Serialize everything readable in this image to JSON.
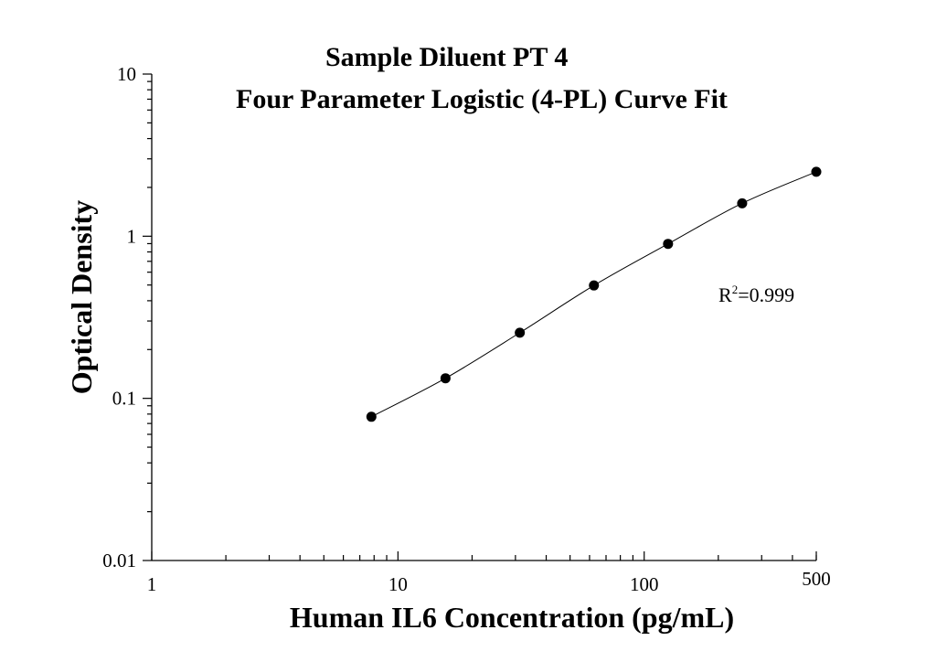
{
  "chart_data": {
    "type": "scatter",
    "title": "Sample Diluent PT 4",
    "subtitle": "Four Parameter Logistic (4-PL) Curve Fit",
    "xlabel": "Human IL6 Concentration (pg/mL)",
    "ylabel": "Optical Density",
    "x_scale": "log",
    "y_scale": "log",
    "xlim": [
      1,
      500
    ],
    "ylim": [
      0.01,
      10
    ],
    "x_ticks": [
      1,
      10,
      100,
      500
    ],
    "x_tick_labels": [
      "1",
      "10",
      "100",
      "500"
    ],
    "y_ticks": [
      0.01,
      0.1,
      1,
      10
    ],
    "y_tick_labels": [
      "0.01",
      "0.1",
      "1",
      "10"
    ],
    "grid": false,
    "series": [
      {
        "x": [
          7.8,
          15.6,
          31.25,
          62.5,
          125,
          250,
          500
        ],
        "y": [
          0.077,
          0.133,
          0.254,
          0.497,
          0.897,
          1.596,
          2.496
        ],
        "color": "#000000",
        "marker": "circle",
        "fit_curve": "4-PL"
      }
    ],
    "annotation": {
      "base": "R",
      "superscript": "2",
      "value": "=0.999"
    }
  }
}
